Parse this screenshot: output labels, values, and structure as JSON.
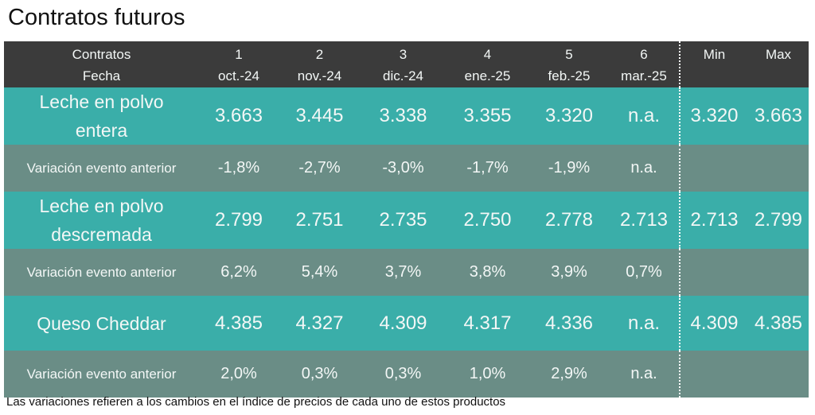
{
  "title": "Contratos futuros",
  "header": {
    "row1_label": "Contratos",
    "row2_label": "Fecha",
    "contracts": [
      "1",
      "2",
      "3",
      "4",
      "5",
      "6"
    ],
    "dates": [
      "oct.-24",
      "nov.-24",
      "dic.-24",
      "ene.-25",
      "feb.-25",
      "mar.-25"
    ],
    "min_label": "Min",
    "max_label": "Max"
  },
  "products": [
    {
      "name": "Leche en polvo entera",
      "values": [
        "3.663",
        "3.445",
        "3.338",
        "3.355",
        "3.320",
        "n.a."
      ],
      "min": "3.320",
      "max": "3.663",
      "variation_label": "Variación evento anterior",
      "variations": [
        "-1,8%",
        "-2,7%",
        "-3,0%",
        "-1,7%",
        "-1,9%",
        "n.a."
      ]
    },
    {
      "name": "Leche en polvo descremada",
      "values": [
        "2.799",
        "2.751",
        "2.735",
        "2.750",
        "2.778",
        "2.713"
      ],
      "min": "2.713",
      "max": "2.799",
      "variation_label": "Variación evento anterior",
      "variations": [
        "6,2%",
        "5,4%",
        "3,7%",
        "3,8%",
        "3,9%",
        "0,7%"
      ]
    },
    {
      "name": "Queso Cheddar",
      "values": [
        "4.385",
        "4.327",
        "4.309",
        "4.317",
        "4.336",
        "n.a."
      ],
      "min": "4.309",
      "max": "4.385",
      "variation_label": "Variación evento anterior",
      "variations": [
        "2,0%",
        "0,3%",
        "0,3%",
        "1,0%",
        "2,9%",
        "n.a."
      ]
    }
  ],
  "footnote": "Las variaciones refieren a los cambios en el índice de precios de cada uno de estos productos",
  "colors": {
    "header": "#3b3b3b",
    "product_row": "#3aaea9",
    "variation_row": "#6a8d86"
  }
}
